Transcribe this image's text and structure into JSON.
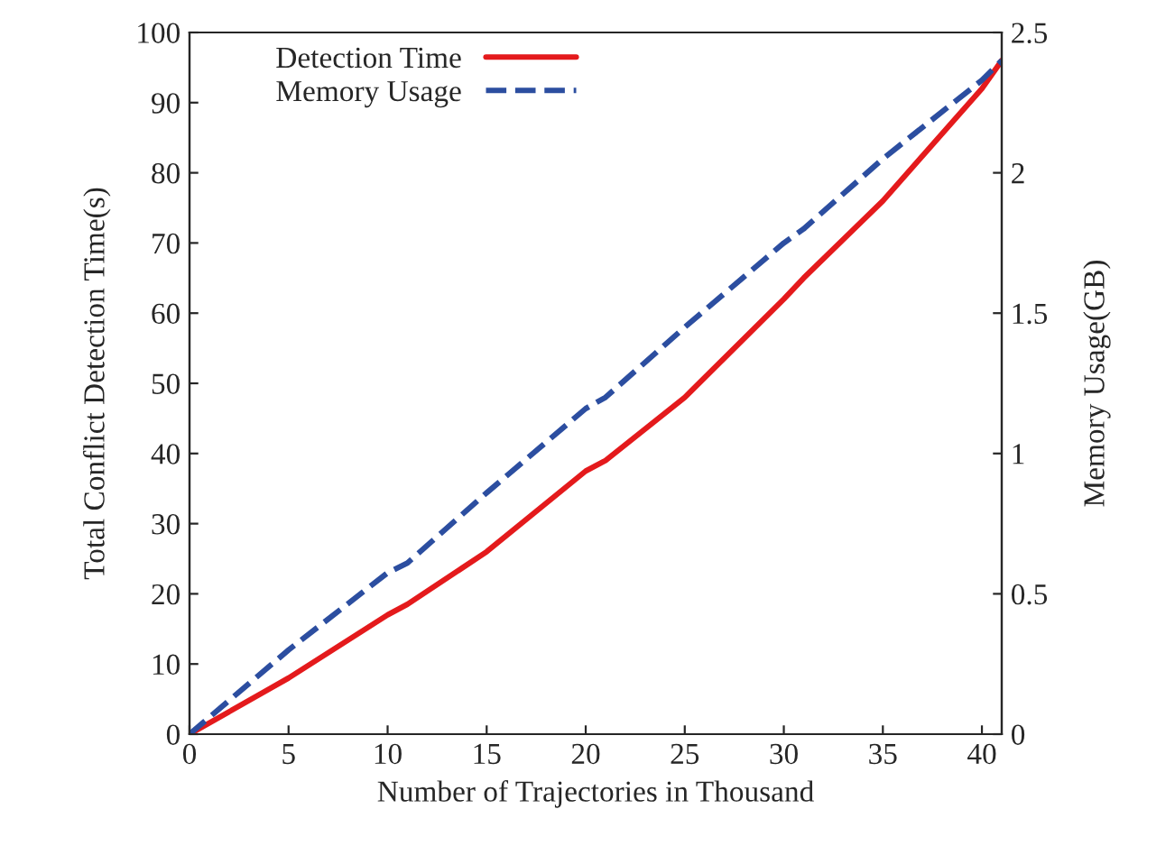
{
  "chart_data": {
    "type": "line",
    "xlabel": "Number of Trajectories in Thousand",
    "ylabel": "Total Conflict Detection Time(s)",
    "y2label": "Memory Usage(GB)",
    "x": [
      0,
      5,
      10,
      11,
      15,
      20,
      21,
      25,
      30,
      31,
      35,
      40,
      41
    ],
    "series": [
      {
        "name": "Detection Time",
        "color": "#e41a1c",
        "line_style": "solid",
        "values": [
          0,
          8,
          17,
          18.5,
          26,
          37.5,
          39,
          48,
          62,
          65,
          76,
          92,
          96
        ]
      },
      {
        "name": "Memory Usage",
        "color": "#2c4ea0",
        "line_style": "dashed",
        "axis": "y2",
        "values": [
          0,
          0.3,
          0.575,
          0.61,
          0.86,
          1.16,
          1.2,
          1.45,
          1.75,
          1.8,
          2.05,
          2.33,
          2.4
        ]
      }
    ],
    "xlim": [
      0,
      41
    ],
    "xticks": [
      0,
      5,
      10,
      15,
      20,
      25,
      30,
      35,
      40
    ],
    "ylim": [
      0,
      100
    ],
    "yticks": [
      0,
      10,
      20,
      30,
      40,
      50,
      60,
      70,
      80,
      90,
      100
    ],
    "y2lim": [
      0,
      2.5
    ],
    "y2ticks": [
      0,
      0.5,
      1,
      1.5,
      2,
      2.5
    ],
    "grid": false,
    "legend": "top left",
    "marker": "none"
  }
}
